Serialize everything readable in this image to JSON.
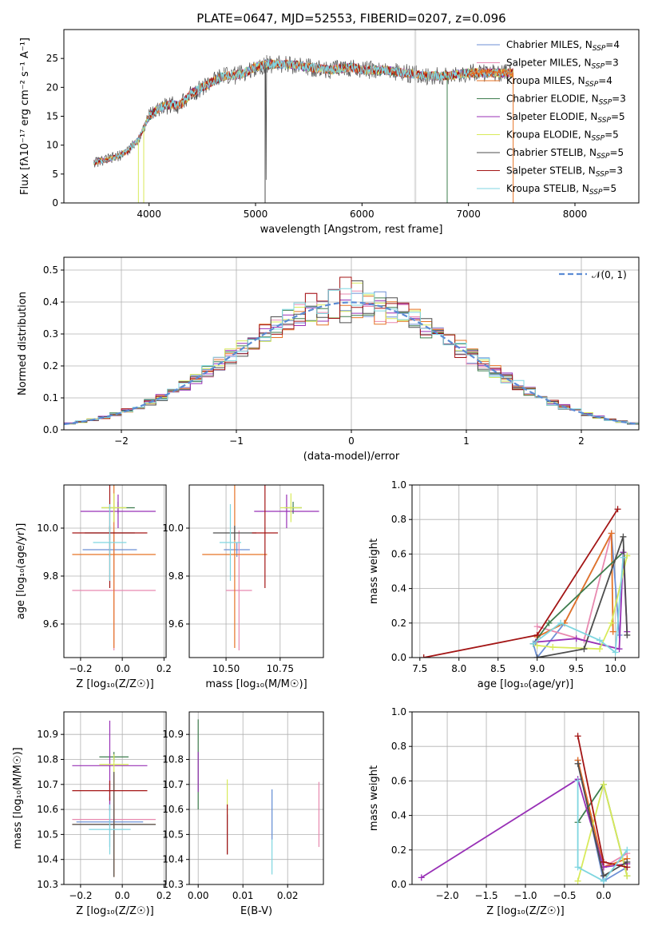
{
  "colors": [
    "#6c8fd5",
    "#e889b0",
    "#e67326",
    "#3e7d4e",
    "#9830b6",
    "#d8ea5a",
    "#4d4d4d",
    "#a31515",
    "#7fd6e0"
  ],
  "chart_data": [
    {
      "id": "spectrum",
      "type": "line",
      "title": "PLATE=0647, MJD=52553, FIBERID=0207, z=0.096",
      "xlabel": "wavelength [Angstrom, rest frame]",
      "ylabel": "Flux [fλ10⁻¹⁷ erg cm⁻² s⁻¹ A⁻¹]",
      "xlim": [
        3200,
        8600
      ],
      "ylim": [
        0,
        30
      ],
      "xticks": [
        4000,
        5000,
        6000,
        7000,
        8000
      ],
      "yticks": [
        0,
        5,
        10,
        15,
        20,
        25
      ],
      "grid": false,
      "legend_position": "upper-right",
      "legend": [
        "Chabrier MILES, N_SSP=4",
        "Salpeter MILES, N_SSP=3",
        "Kroupa MILES, N_SSP=4",
        "Chabrier ELODIE, N_SSP=3",
        "Salpeter ELODIE, N_SSP=5",
        "Kroupa ELODIE, N_SSP=5",
        "Chabrier STELIB, N_SSP=5",
        "Salpeter STELIB, N_SSP=3",
        "Kroupa STELIB, N_SSP=5"
      ],
      "continuum": {
        "x": [
          3480,
          3600,
          3700,
          3800,
          3900,
          4000,
          4100,
          4200,
          4300,
          4400,
          4500,
          4600,
          4700,
          4800,
          4900,
          5000,
          5100,
          5200,
          5300,
          5500,
          5700,
          5900,
          6000,
          6200,
          6400,
          6600,
          6800,
          7000,
          7200,
          7400,
          7600,
          7800,
          8000,
          8200,
          8400,
          8600
        ],
        "y": [
          7,
          7.5,
          8,
          9,
          11,
          15,
          16.5,
          17,
          17,
          19,
          20,
          21,
          22,
          22,
          22.5,
          23.5,
          24,
          24,
          24,
          23.5,
          23,
          23.5,
          23,
          23,
          22.5,
          22,
          22,
          22.5,
          22.5,
          22.5,
          22.5,
          23,
          22.5,
          22.5,
          22.5,
          22.5
        ]
      }
    },
    {
      "id": "residuals",
      "type": "bar",
      "xlabel": "(data-model)/error",
      "ylabel": "Normed distribution",
      "xlim": [
        -2.5,
        2.5
      ],
      "ylim": [
        0,
        0.54
      ],
      "xticks": [
        -2,
        -1,
        0,
        1,
        2
      ],
      "yticks": [
        0.0,
        0.1,
        0.2,
        0.3,
        0.4,
        0.5
      ],
      "grid": true,
      "legend": "𝒩(0, 1)",
      "legend_position": "upper-right",
      "normal_curve": {
        "mu": 0,
        "sigma": 1
      },
      "bin_width": 0.1
    },
    {
      "id": "age-vs-z",
      "type": "scatter",
      "xlabel": "Z [log₁₀(Z/Z☉)]",
      "ylabel": "age  [log₁₀(age/yr)]",
      "xlim": [
        -0.28,
        0.21
      ],
      "ylim": [
        9.46,
        10.18
      ],
      "xticks": [
        -0.2,
        0.0,
        0.2
      ],
      "yticks": [
        9.6,
        9.8,
        10.0
      ],
      "grid": true,
      "points": [
        {
          "x": -0.06,
          "y": 9.91,
          "xerr": 0.13,
          "yerr": 0.03
        },
        {
          "x": -0.04,
          "y": 9.74,
          "xerr": 0.2,
          "yerr": 0.25
        },
        {
          "x": -0.04,
          "y": 9.89,
          "xerr": 0.2,
          "yerr": 0.39
        },
        {
          "x": -0.02,
          "y": 10.085,
          "xerr": 0.08,
          "yerr": 0.025
        },
        {
          "x": -0.02,
          "y": 10.07,
          "xerr": 0.18,
          "yerr": 0.07
        },
        {
          "x": -0.04,
          "y": 10.085,
          "xerr": 0.06,
          "yerr": 0.06
        },
        {
          "x": -0.06,
          "y": 9.98,
          "xerr": 0.12,
          "yerr": 0.03
        },
        {
          "x": -0.06,
          "y": 9.98,
          "xerr": 0.18,
          "yerr": 0.23
        },
        {
          "x": -0.06,
          "y": 9.94,
          "xerr": 0.08,
          "yerr": 0.16
        }
      ]
    },
    {
      "id": "age-vs-mass",
      "type": "scatter",
      "xlabel": "mass [log₁₀(M/M☉)]",
      "ylabel": "",
      "xlim": [
        10.33,
        10.95
      ],
      "ylim": [
        9.46,
        10.18
      ],
      "xticks": [
        10.5,
        10.75
      ],
      "yticks": [
        9.6,
        9.8,
        10.0
      ],
      "grid": true,
      "points": [
        {
          "x": 10.55,
          "y": 9.91,
          "xerr": 0.06,
          "yerr": 0.03
        },
        {
          "x": 10.56,
          "y": 9.74,
          "xerr": 0.06,
          "yerr": 0.25
        },
        {
          "x": 10.54,
          "y": 9.89,
          "xerr": 0.15,
          "yerr": 0.39
        },
        {
          "x": 10.81,
          "y": 10.085,
          "xerr": 0.04,
          "yerr": 0.025
        },
        {
          "x": 10.78,
          "y": 10.07,
          "xerr": 0.15,
          "yerr": 0.07
        },
        {
          "x": 10.8,
          "y": 10.085,
          "xerr": 0.05,
          "yerr": 0.06
        },
        {
          "x": 10.54,
          "y": 9.98,
          "xerr": 0.1,
          "yerr": 0.03
        },
        {
          "x": 10.68,
          "y": 9.98,
          "xerr": 0.06,
          "yerr": 0.23
        },
        {
          "x": 10.52,
          "y": 9.94,
          "xerr": 0.05,
          "yerr": 0.16
        }
      ]
    },
    {
      "id": "weight-vs-age",
      "type": "line",
      "xlabel": "age  [log₁₀(age/yr)]",
      "ylabel": "mass weight",
      "xlim": [
        7.4,
        10.3
      ],
      "ylim": [
        0,
        1.0
      ],
      "xticks": [
        7.5,
        8.0,
        8.5,
        9.0,
        9.5,
        10.0
      ],
      "yticks": [
        0.0,
        0.2,
        0.4,
        0.6,
        0.8,
        1.0
      ],
      "grid": true,
      "series": [
        {
          "x": [
            8.95,
            9.0,
            9.35,
            9.95,
            10.05
          ],
          "y": [
            0.08,
            0.0,
            0.2,
            0.72,
            0.13
          ]
        },
        {
          "x": [
            9.0,
            9.6,
            9.95
          ],
          "y": [
            0.18,
            0.1,
            0.72
          ]
        },
        {
          "x": [
            9.0,
            9.35,
            9.95,
            9.97
          ],
          "y": [
            0.12,
            0.2,
            0.72,
            0.15
          ]
        },
        {
          "x": [
            8.95,
            9.15,
            10.1
          ],
          "y": [
            0.08,
            0.2,
            0.61
          ]
        },
        {
          "x": [
            8.98,
            9.5,
            10.05,
            10.1,
            10.15
          ],
          "y": [
            0.09,
            0.11,
            0.05,
            0.61,
            0.15
          ]
        },
        {
          "x": [
            9.0,
            9.2,
            9.8,
            9.95,
            10.15
          ],
          "y": [
            0.07,
            0.06,
            0.05,
            0.2,
            0.59
          ]
        },
        {
          "x": [
            9.0,
            9.6,
            10.1,
            10.15
          ],
          "y": [
            0.0,
            0.05,
            0.7,
            0.13
          ]
        },
        {
          "x": [
            7.55,
            9.0,
            10.03
          ],
          "y": [
            0.0,
            0.13,
            0.86
          ]
        },
        {
          "x": [
            8.95,
            9.3,
            9.8,
            10.0,
            10.1
          ],
          "y": [
            0.08,
            0.2,
            0.1,
            0.03,
            0.58
          ]
        }
      ]
    },
    {
      "id": "mass-vs-z",
      "type": "scatter",
      "xlabel": "Z [log₁₀(Z/Z☉)]",
      "ylabel": "mass [log₁₀(M/M☉)]",
      "xlim": [
        -0.28,
        0.21
      ],
      "ylim": [
        10.3,
        10.99
      ],
      "xticks": [
        -0.2,
        0.0,
        0.2
      ],
      "yticks": [
        10.3,
        10.4,
        10.5,
        10.6,
        10.7,
        10.8,
        10.9
      ],
      "grid": true,
      "points": [
        {
          "x": -0.06,
          "y": 10.55,
          "xerr": 0.16,
          "yerr": 0.1
        },
        {
          "x": -0.04,
          "y": 10.56,
          "xerr": 0.2,
          "yerr": 0.06
        },
        {
          "x": -0.04,
          "y": 10.54,
          "xerr": 0.2,
          "yerr": 0.21
        },
        {
          "x": -0.04,
          "y": 10.81,
          "xerr": 0.07,
          "yerr": 0.02
        },
        {
          "x": -0.06,
          "y": 10.775,
          "xerr": 0.18,
          "yerr": 0.18
        },
        {
          "x": -0.04,
          "y": 10.78,
          "xerr": 0.07,
          "yerr": 0.04
        },
        {
          "x": -0.04,
          "y": 10.54,
          "xerr": 0.2,
          "yerr": 0.21
        },
        {
          "x": -0.06,
          "y": 10.675,
          "xerr": 0.18,
          "yerr": 0.04
        },
        {
          "x": -0.06,
          "y": 10.52,
          "xerr": 0.1,
          "yerr": 0.1
        }
      ]
    },
    {
      "id": "mass-vs-ebv",
      "type": "scatter",
      "xlabel": "E(B-V)",
      "ylabel": "",
      "xlim": [
        -0.002,
        0.028
      ],
      "ylim": [
        10.3,
        10.99
      ],
      "xticks": [
        0.0,
        0.01,
        0.02
      ],
      "yticks": [
        10.3,
        10.4,
        10.5,
        10.6,
        10.7,
        10.8,
        10.9
      ],
      "grid": true,
      "points": [
        {
          "x": 0.0,
          "y": 10.78,
          "yerr": 0.18
        },
        {
          "x": 0.0,
          "y": 10.75,
          "yerr": 0.08
        },
        {
          "x": 0.0065,
          "y": 10.65,
          "yerr": 0.07
        },
        {
          "x": 0.0065,
          "y": 10.5,
          "yerr": 0.08
        },
        {
          "x": 0.0065,
          "y": 10.52,
          "yerr": 0.1
        },
        {
          "x": 0.0165,
          "y": 10.51,
          "yerr": 0.17
        },
        {
          "x": 0.0165,
          "y": 10.58,
          "yerr": 0.1
        },
        {
          "x": 0.027,
          "y": 10.58,
          "yerr": 0.13
        }
      ]
    },
    {
      "id": "weight-vs-z",
      "type": "line",
      "xlabel": "Z [log₁₀(Z/Z☉)]",
      "ylabel": "mass weight",
      "xlim": [
        -2.45,
        0.45
      ],
      "ylim": [
        0,
        1.0
      ],
      "xticks": [
        -2.0,
        -1.5,
        -1.0,
        -0.5,
        0.0
      ],
      "yticks": [
        0.0,
        0.2,
        0.4,
        0.6,
        0.8,
        1.0
      ],
      "grid": true,
      "series": [
        {
          "x": [
            -0.33,
            0.0,
            0.3
          ],
          "y": [
            0.72,
            0.02,
            0.1
          ]
        },
        {
          "x": [
            -0.33,
            0.0,
            0.3
          ],
          "y": [
            0.72,
            0.1,
            0.18
          ]
        },
        {
          "x": [
            -0.33,
            0.0,
            0.3
          ],
          "y": [
            0.72,
            0.1,
            0.15
          ]
        },
        {
          "x": [
            -0.33,
            0.0,
            0.3
          ],
          "y": [
            0.36,
            0.58,
            0.05
          ]
        },
        {
          "x": [
            -2.33,
            -0.33,
            0.0,
            0.3
          ],
          "y": [
            0.04,
            0.61,
            0.1,
            0.12
          ]
        },
        {
          "x": [
            -0.33,
            0.0,
            0.3
          ],
          "y": [
            0.02,
            0.58,
            0.05
          ]
        },
        {
          "x": [
            -0.33,
            0.0,
            0.3
          ],
          "y": [
            0.7,
            0.05,
            0.13
          ]
        },
        {
          "x": [
            -0.33,
            0.0,
            0.3
          ],
          "y": [
            0.86,
            0.13,
            0.1
          ]
        },
        {
          "x": [
            -0.33,
            -0.33,
            0.0,
            0.3
          ],
          "y": [
            0.6,
            0.1,
            0.02,
            0.2
          ]
        }
      ]
    }
  ]
}
